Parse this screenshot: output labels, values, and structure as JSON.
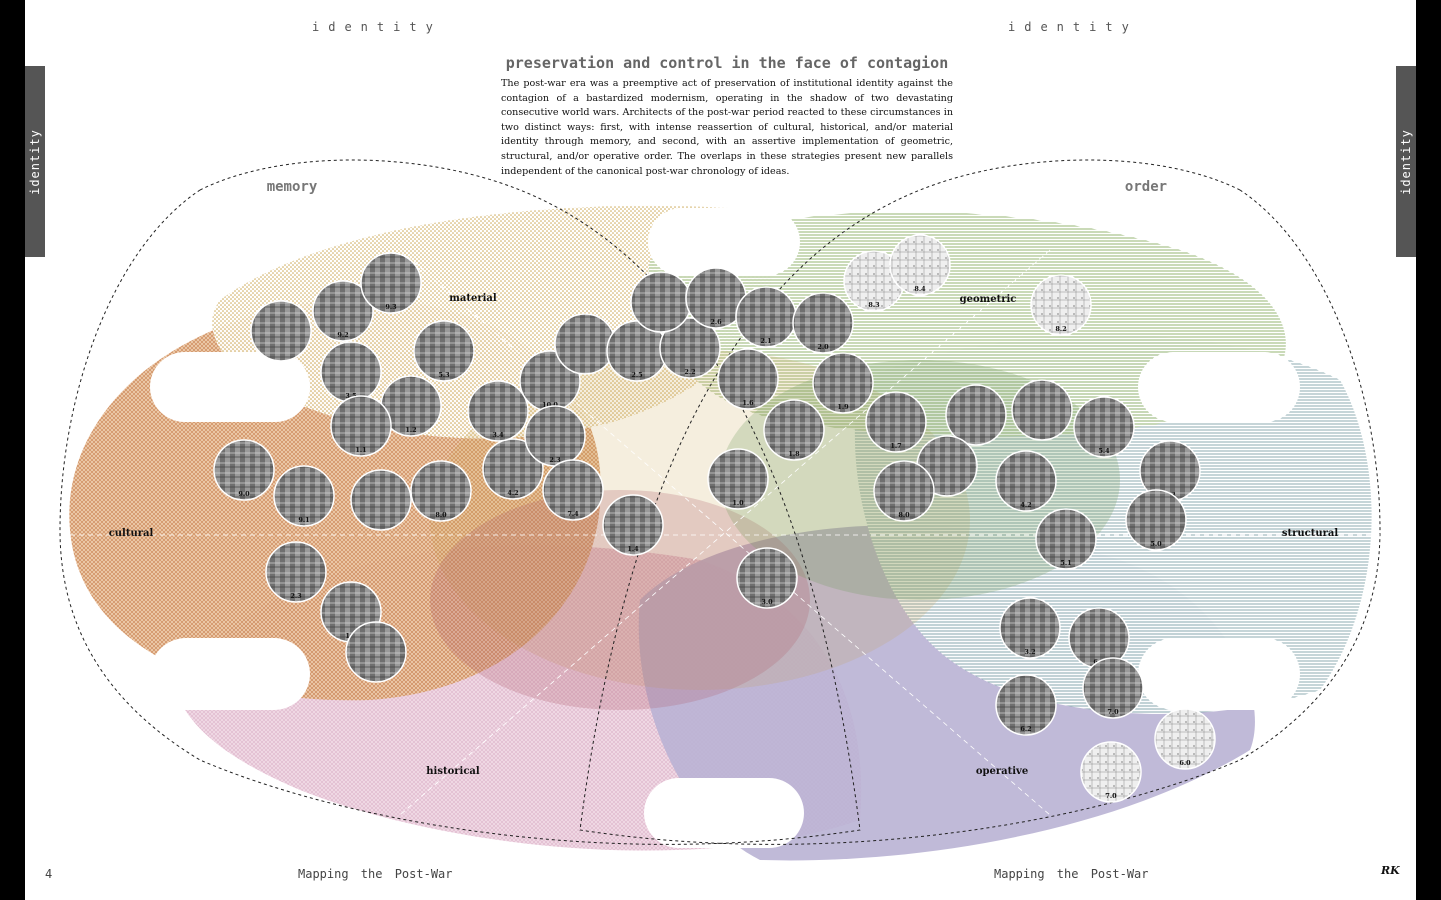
{
  "header": {
    "left": "identity",
    "right": "identity"
  },
  "side_tabs": {
    "left": "identity",
    "right": "identity"
  },
  "title": "preservation and control in the face of contagion",
  "intro": "The post-war era was a preemptive act of preservation of institutional identity against the contagion of a bastardized modernism, operating in the shadow of two devastating consecutive world wars. Architects of the post-war period reacted to these circumstances in two distinct ways: first, with intense reassertion of cultural, historical, and/or material identity through memory, and second, with an assertive implementation of geometric, structural, and/or operative order. The overlaps in these strategies present new parallels independent of the canonical post-war chronology of ideas.",
  "sets": {
    "left": "memory",
    "right": "order"
  },
  "axes": {
    "material": "material",
    "cultural": "cultural",
    "historical": "historical",
    "geometric": "geometric",
    "structural": "structural",
    "operative": "operative"
  },
  "colors": {
    "material": "#d9b95e",
    "cultural": "#d48f5c",
    "historical": "#c986a8",
    "geometric": "#8fb06b",
    "structural": "#8aa7ad",
    "operative": "#8d81b3"
  },
  "nodes": [
    {
      "label": "",
      "icon": "building-photo-icon"
    },
    {
      "label": "9.2",
      "icon": "building-photo-icon"
    },
    {
      "label": "9.3",
      "icon": "building-photo-icon"
    },
    {
      "label": "5.3",
      "icon": "building-photo-icon"
    },
    {
      "label": "3.5",
      "icon": "building-photo-icon"
    },
    {
      "label": "1.2",
      "icon": "building-photo-icon"
    },
    {
      "label": "1.1",
      "icon": "building-photo-icon"
    },
    {
      "label": "9.0",
      "icon": "building-photo-icon"
    },
    {
      "label": "9.1",
      "icon": "building-photo-icon"
    },
    {
      "label": "",
      "icon": "building-photo-icon"
    },
    {
      "label": "8.0",
      "icon": "building-photo-icon"
    },
    {
      "label": "4.2",
      "icon": "building-photo-icon"
    },
    {
      "label": "3.4",
      "icon": "building-photo-icon"
    },
    {
      "label": "10.0",
      "icon": "building-photo-icon"
    },
    {
      "label": "2.3",
      "icon": "building-photo-icon"
    },
    {
      "label": "7.4",
      "icon": "building-photo-icon"
    },
    {
      "label": "1.4",
      "icon": "building-photo-icon"
    },
    {
      "label": "2.3",
      "icon": "building-photo-icon"
    },
    {
      "label": "1.5",
      "icon": "building-photo-icon"
    },
    {
      "label": "",
      "icon": "building-photo-icon"
    },
    {
      "label": "",
      "icon": "building-photo-icon"
    },
    {
      "label": "2.5",
      "icon": "building-photo-icon"
    },
    {
      "label": "2.2",
      "icon": "building-photo-icon"
    },
    {
      "label": "",
      "icon": "building-photo-icon"
    },
    {
      "label": "2.6",
      "icon": "building-photo-icon"
    },
    {
      "label": "2.1",
      "icon": "building-photo-icon"
    },
    {
      "label": "2.0",
      "icon": "building-photo-icon"
    },
    {
      "label": "1.6",
      "icon": "building-photo-icon"
    },
    {
      "label": "1.9",
      "icon": "building-photo-icon"
    },
    {
      "label": "1.8",
      "icon": "building-photo-icon"
    },
    {
      "label": "1.0",
      "icon": "building-photo-icon"
    },
    {
      "label": "3.0",
      "icon": "building-photo-icon"
    },
    {
      "label": "8.3",
      "icon": "site-plan-icon"
    },
    {
      "label": "8.4",
      "icon": "site-plan-icon"
    },
    {
      "label": "8.2",
      "icon": "site-plan-icon"
    },
    {
      "label": "1.7",
      "icon": "building-photo-icon"
    },
    {
      "label": "",
      "icon": "building-photo-icon"
    },
    {
      "label": "",
      "icon": "building-photo-icon"
    },
    {
      "label": "",
      "icon": "building-photo-icon"
    },
    {
      "label": "5.4",
      "icon": "building-photo-icon"
    },
    {
      "label": "8.0",
      "icon": "building-photo-icon"
    },
    {
      "label": "4.2",
      "icon": "building-photo-icon"
    },
    {
      "label": "6.3",
      "icon": "building-photo-icon"
    },
    {
      "label": "5.0",
      "icon": "building-photo-icon"
    },
    {
      "label": "5.1",
      "icon": "building-photo-icon"
    },
    {
      "label": "3.2",
      "icon": "building-photo-icon"
    },
    {
      "label": "6.1",
      "icon": "building-photo-icon"
    },
    {
      "label": "7.0",
      "icon": "building-photo-icon"
    },
    {
      "label": "6.2",
      "icon": "building-photo-icon"
    },
    {
      "label": "6.0",
      "icon": "site-plan-icon"
    },
    {
      "label": "7.0",
      "icon": "map-icon"
    },
    {
      "label": "6.4",
      "icon": "drawing-icon"
    }
  ],
  "footer": {
    "page_number": "4",
    "left": "Mapping the Post-War",
    "right": "Mapping the Post-War",
    "logo": "RK"
  }
}
